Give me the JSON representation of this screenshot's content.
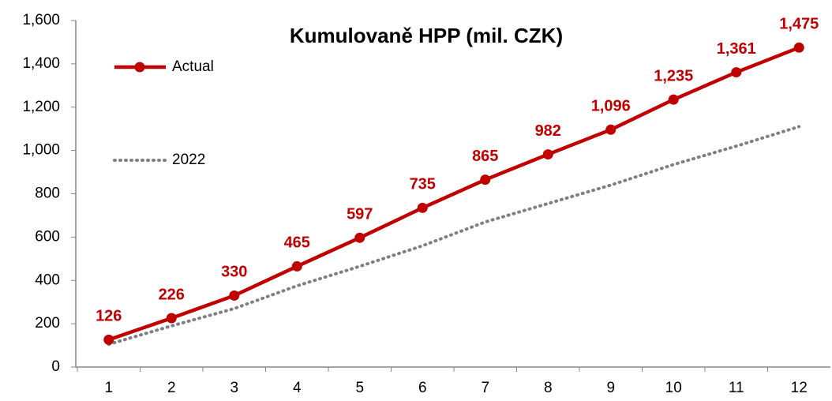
{
  "chart_data": {
    "type": "line",
    "title": "Kumulovaně HPP (mil. CZK)",
    "categories": [
      "1",
      "2",
      "3",
      "4",
      "5",
      "6",
      "7",
      "8",
      "9",
      "10",
      "11",
      "12"
    ],
    "series": [
      {
        "name": "Actual",
        "color": "#c00000",
        "style": "solid",
        "marker": "circle",
        "values": [
          126,
          226,
          330,
          465,
          597,
          735,
          865,
          982,
          1096,
          1235,
          1361,
          1475
        ],
        "value_labels": [
          "126",
          "226",
          "330",
          "465",
          "597",
          "735",
          "865",
          "982",
          "1,096",
          "1,235",
          "1,361",
          "1,475"
        ]
      },
      {
        "name": "2022",
        "color": "#808080",
        "style": "dotted",
        "values": [
          105,
          190,
          270,
          375,
          465,
          560,
          670,
          755,
          840,
          935,
          1020,
          1110
        ]
      }
    ],
    "ylim": [
      0,
      1600
    ],
    "yticks": [
      0,
      200,
      400,
      600,
      800,
      {
        "value": 1000,
        "label": "1,000"
      },
      {
        "value": 1200,
        "label": "1,200"
      },
      {
        "value": 1400,
        "label": "1,400"
      },
      {
        "value": 1600,
        "label": "1,600"
      }
    ],
    "grid": false,
    "legend": "upper left"
  }
}
